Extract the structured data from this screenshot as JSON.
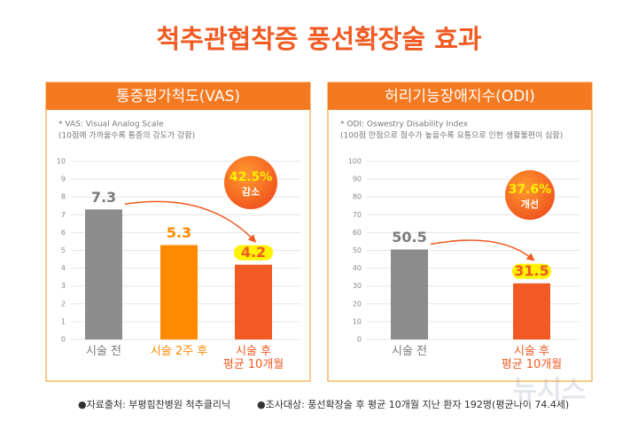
{
  "title": "척추관협착증 풍선확장술 효과",
  "footer": [
    "●자료출처: 부평힘찬병원 척추클리닉",
    "●조사대상: 풍선확장술 후 평균 10개월 지난 환자 192명(평균나이 74.4세)"
  ],
  "watermark": "뉴시스",
  "chart_data": [
    {
      "type": "bar",
      "title": "통증평가척도(VAS)",
      "notes": [
        "* VAS: Visual Analog Scale",
        "(10점에 가까울수록 통증의 강도가 강함)"
      ],
      "categories": [
        "시술 전",
        "시술 2주 후",
        "시술 후\n평균 10개월"
      ],
      "values": [
        7.3,
        5.3,
        4.2
      ],
      "colors": [
        "#8c8c8c",
        "#ff8a00",
        "#f15a22"
      ],
      "label_colors": [
        "#7a7a7a",
        "#ff8a00",
        "#f15a22"
      ],
      "ylim": [
        0,
        10
      ],
      "yticks": [
        0,
        1,
        2,
        3,
        4,
        5,
        6,
        7,
        8,
        9,
        10
      ],
      "grid": true,
      "annotation": [
        "42.5%",
        "감소"
      ]
    },
    {
      "type": "bar",
      "title": "허리기능장애지수(ODI)",
      "notes": [
        "* ODI: Oswestry Disability Index",
        "(100점 만점으로 점수가 높을수록 요통으로 인한 생활불편이 심함)"
      ],
      "categories": [
        "시술 전",
        "시술 후\n평균 10개월"
      ],
      "values": [
        50.5,
        31.5
      ],
      "colors": [
        "#8c8c8c",
        "#f15a22"
      ],
      "label_colors": [
        "#7a7a7a",
        "#f15a22"
      ],
      "ylim": [
        0,
        100
      ],
      "yticks": [
        0,
        10,
        20,
        30,
        40,
        50,
        60,
        70,
        80,
        90,
        100
      ],
      "grid": true,
      "annotation": [
        "37.6%",
        "개선"
      ]
    }
  ]
}
